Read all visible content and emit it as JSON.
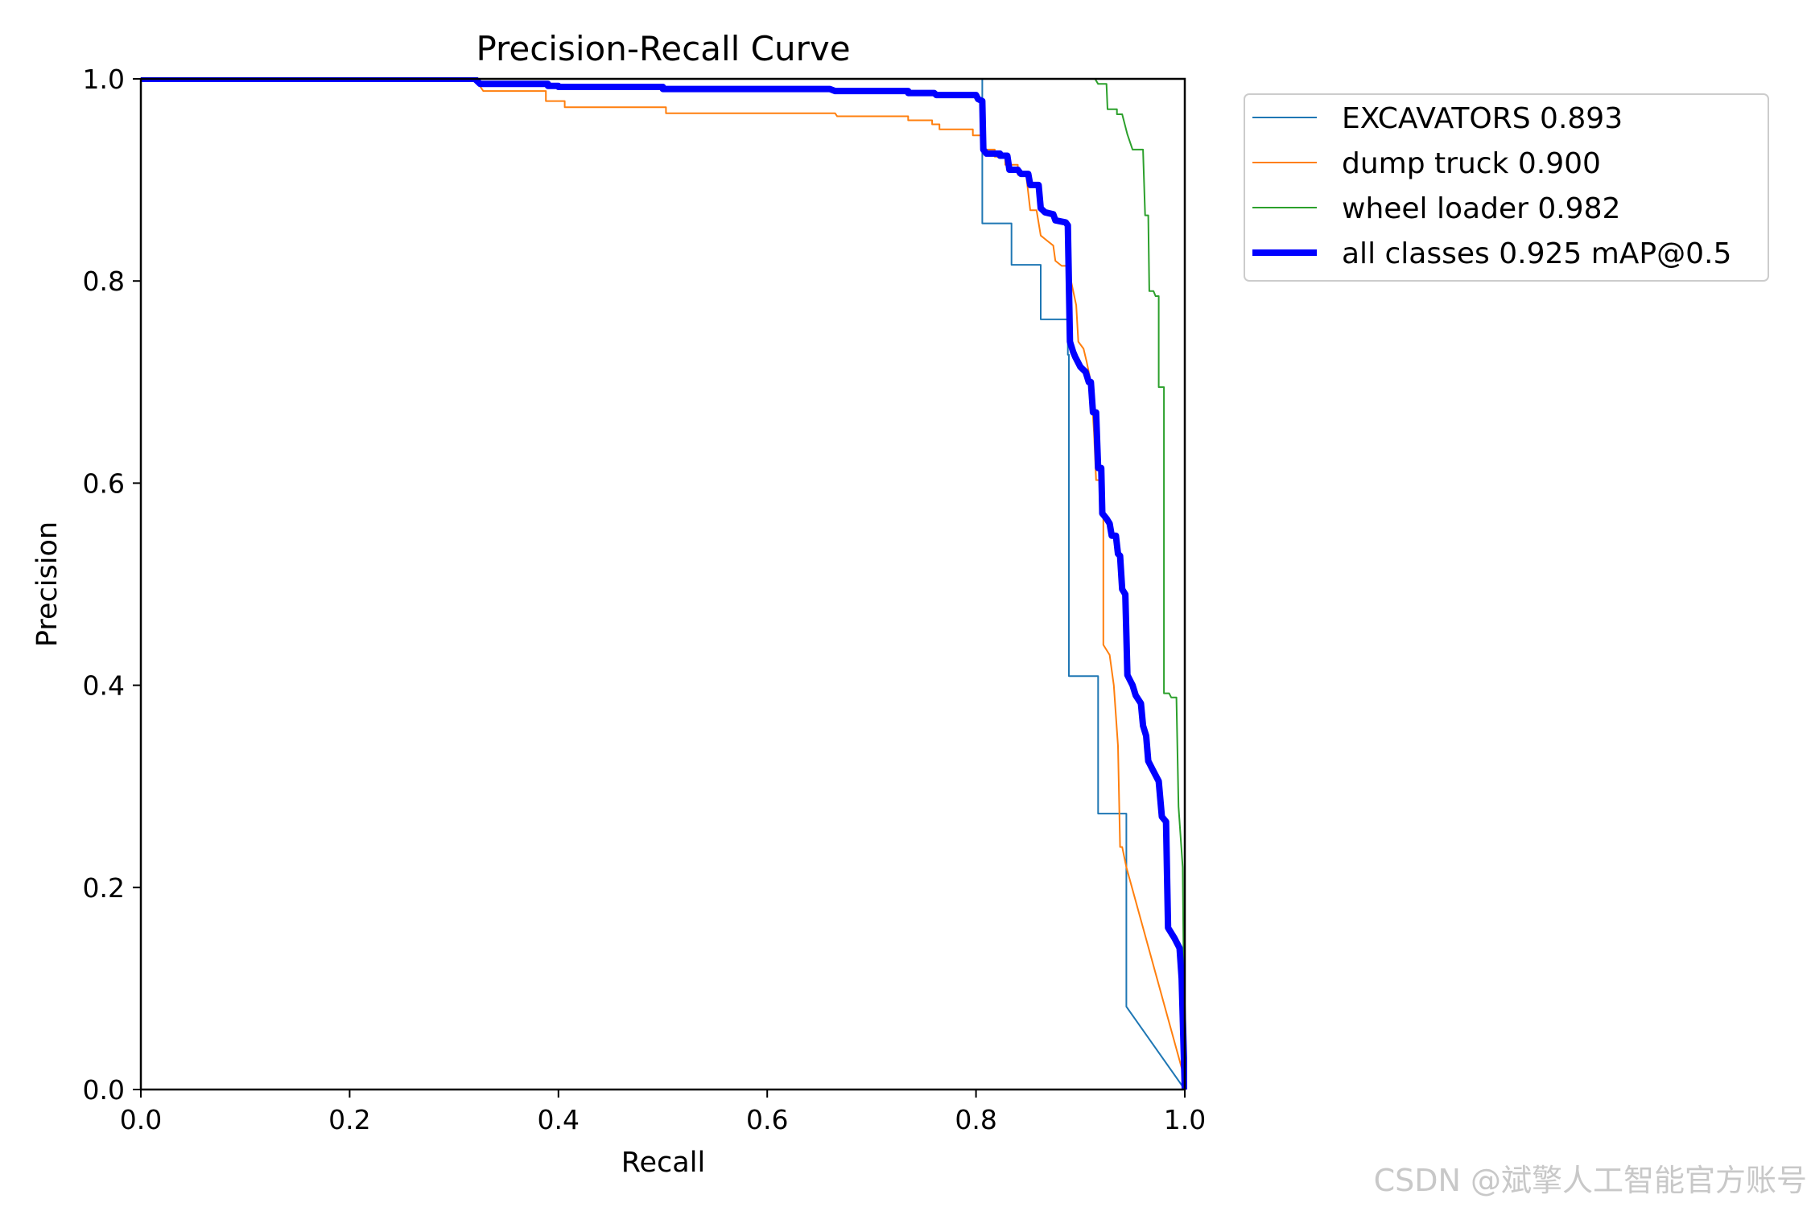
{
  "chart_data": {
    "type": "line",
    "title": "Precision-Recall Curve",
    "xlabel": "Recall",
    "ylabel": "Precision",
    "xlim": [
      0.0,
      1.0
    ],
    "ylim": [
      0.0,
      1.0
    ],
    "xticks": [
      "0.0",
      "0.2",
      "0.4",
      "0.6",
      "0.8",
      "1.0"
    ],
    "yticks": [
      "0.0",
      "0.2",
      "0.4",
      "0.6",
      "0.8",
      "1.0"
    ],
    "grid": false,
    "legend_position": "outside-top-right",
    "series": [
      {
        "name": "EXCAVATORS 0.893",
        "color": "#1f77b4",
        "emphasis": "thin",
        "points": [
          [
            0.0,
            1.0
          ],
          [
            0.806,
            1.0
          ],
          [
            0.806,
            0.857
          ],
          [
            0.834,
            0.857
          ],
          [
            0.834,
            0.816
          ],
          [
            0.862,
            0.816
          ],
          [
            0.862,
            0.762
          ],
          [
            0.888,
            0.762
          ],
          [
            0.888,
            0.727
          ],
          [
            0.889,
            0.727
          ],
          [
            0.889,
            0.409
          ],
          [
            0.917,
            0.409
          ],
          [
            0.917,
            0.273
          ],
          [
            0.944,
            0.273
          ],
          [
            0.944,
            0.082
          ],
          [
            1.0,
            0.0
          ]
        ]
      },
      {
        "name": "dump truck 0.900",
        "color": "#ff7f0e",
        "emphasis": "thin",
        "points": [
          [
            0.0,
            1.0
          ],
          [
            0.32,
            1.0
          ],
          [
            0.328,
            0.988
          ],
          [
            0.388,
            0.988
          ],
          [
            0.388,
            0.978
          ],
          [
            0.406,
            0.978
          ],
          [
            0.406,
            0.972
          ],
          [
            0.503,
            0.972
          ],
          [
            0.503,
            0.966
          ],
          [
            0.665,
            0.966
          ],
          [
            0.667,
            0.963
          ],
          [
            0.735,
            0.963
          ],
          [
            0.735,
            0.959
          ],
          [
            0.758,
            0.959
          ],
          [
            0.758,
            0.955
          ],
          [
            0.765,
            0.955
          ],
          [
            0.765,
            0.95
          ],
          [
            0.797,
            0.95
          ],
          [
            0.797,
            0.944
          ],
          [
            0.806,
            0.944
          ],
          [
            0.806,
            0.93
          ],
          [
            0.818,
            0.93
          ],
          [
            0.818,
            0.923
          ],
          [
            0.828,
            0.923
          ],
          [
            0.828,
            0.915
          ],
          [
            0.84,
            0.915
          ],
          [
            0.84,
            0.905
          ],
          [
            0.848,
            0.905
          ],
          [
            0.852,
            0.87
          ],
          [
            0.858,
            0.87
          ],
          [
            0.862,
            0.845
          ],
          [
            0.868,
            0.84
          ],
          [
            0.874,
            0.835
          ],
          [
            0.876,
            0.82
          ],
          [
            0.882,
            0.815
          ],
          [
            0.888,
            0.815
          ],
          [
            0.896,
            0.776
          ],
          [
            0.898,
            0.74
          ],
          [
            0.903,
            0.733
          ],
          [
            0.906,
            0.72
          ],
          [
            0.91,
            0.7
          ],
          [
            0.913,
            0.65
          ],
          [
            0.915,
            0.603
          ],
          [
            0.922,
            0.603
          ],
          [
            0.922,
            0.44
          ],
          [
            0.928,
            0.43
          ],
          [
            0.932,
            0.4
          ],
          [
            0.936,
            0.34
          ],
          [
            0.938,
            0.24
          ],
          [
            0.94,
            0.24
          ],
          [
            0.944,
            0.22
          ],
          [
            1.0,
            0.01
          ]
        ]
      },
      {
        "name": "wheel loader 0.982",
        "color": "#2ca02c",
        "emphasis": "thin",
        "points": [
          [
            0.0,
            1.0
          ],
          [
            0.914,
            1.0
          ],
          [
            0.917,
            0.995
          ],
          [
            0.925,
            0.995
          ],
          [
            0.926,
            0.97
          ],
          [
            0.935,
            0.97
          ],
          [
            0.935,
            0.965
          ],
          [
            0.94,
            0.965
          ],
          [
            0.945,
            0.945
          ],
          [
            0.95,
            0.93
          ],
          [
            0.96,
            0.93
          ],
          [
            0.962,
            0.865
          ],
          [
            0.965,
            0.865
          ],
          [
            0.966,
            0.79
          ],
          [
            0.97,
            0.79
          ],
          [
            0.972,
            0.785
          ],
          [
            0.975,
            0.785
          ],
          [
            0.975,
            0.695
          ],
          [
            0.98,
            0.695
          ],
          [
            0.98,
            0.392
          ],
          [
            0.985,
            0.392
          ],
          [
            0.987,
            0.388
          ],
          [
            0.992,
            0.388
          ],
          [
            0.994,
            0.28
          ],
          [
            0.998,
            0.22
          ],
          [
            1.0,
            0.0
          ]
        ]
      },
      {
        "name": "all classes 0.925 mAP@0.5",
        "color": "#0000ff",
        "emphasis": "thick",
        "points": [
          [
            0.0,
            1.0
          ],
          [
            0.32,
            1.0
          ],
          [
            0.325,
            0.995
          ],
          [
            0.39,
            0.995
          ],
          [
            0.39,
            0.993
          ],
          [
            0.4,
            0.993
          ],
          [
            0.4,
            0.992
          ],
          [
            0.5,
            0.992
          ],
          [
            0.5,
            0.99
          ],
          [
            0.66,
            0.99
          ],
          [
            0.665,
            0.988
          ],
          [
            0.735,
            0.988
          ],
          [
            0.735,
            0.986
          ],
          [
            0.76,
            0.986
          ],
          [
            0.762,
            0.984
          ],
          [
            0.8,
            0.984
          ],
          [
            0.802,
            0.98
          ],
          [
            0.806,
            0.978
          ],
          [
            0.807,
            0.93
          ],
          [
            0.81,
            0.926
          ],
          [
            0.823,
            0.926
          ],
          [
            0.823,
            0.924
          ],
          [
            0.83,
            0.924
          ],
          [
            0.832,
            0.91
          ],
          [
            0.84,
            0.91
          ],
          [
            0.843,
            0.906
          ],
          [
            0.85,
            0.906
          ],
          [
            0.852,
            0.895
          ],
          [
            0.86,
            0.895
          ],
          [
            0.862,
            0.872
          ],
          [
            0.866,
            0.868
          ],
          [
            0.874,
            0.866
          ],
          [
            0.876,
            0.86
          ],
          [
            0.886,
            0.858
          ],
          [
            0.888,
            0.855
          ],
          [
            0.89,
            0.74
          ],
          [
            0.893,
            0.73
          ],
          [
            0.895,
            0.725
          ],
          [
            0.9,
            0.715
          ],
          [
            0.905,
            0.71
          ],
          [
            0.908,
            0.7
          ],
          [
            0.91,
            0.7
          ],
          [
            0.912,
            0.67
          ],
          [
            0.915,
            0.67
          ],
          [
            0.917,
            0.615
          ],
          [
            0.92,
            0.615
          ],
          [
            0.921,
            0.57
          ],
          [
            0.925,
            0.565
          ],
          [
            0.928,
            0.56
          ],
          [
            0.93,
            0.548
          ],
          [
            0.934,
            0.548
          ],
          [
            0.936,
            0.53
          ],
          [
            0.938,
            0.528
          ],
          [
            0.94,
            0.495
          ],
          [
            0.943,
            0.49
          ],
          [
            0.945,
            0.41
          ],
          [
            0.95,
            0.4
          ],
          [
            0.953,
            0.39
          ],
          [
            0.958,
            0.382
          ],
          [
            0.96,
            0.36
          ],
          [
            0.963,
            0.35
          ],
          [
            0.965,
            0.325
          ],
          [
            0.97,
            0.315
          ],
          [
            0.975,
            0.305
          ],
          [
            0.978,
            0.27
          ],
          [
            0.982,
            0.265
          ],
          [
            0.984,
            0.16
          ],
          [
            0.99,
            0.15
          ],
          [
            0.995,
            0.14
          ],
          [
            0.997,
            0.11
          ],
          [
            1.0,
            0.0
          ]
        ]
      }
    ]
  },
  "watermark": "CSDN @斌擎人工智能官方账号"
}
